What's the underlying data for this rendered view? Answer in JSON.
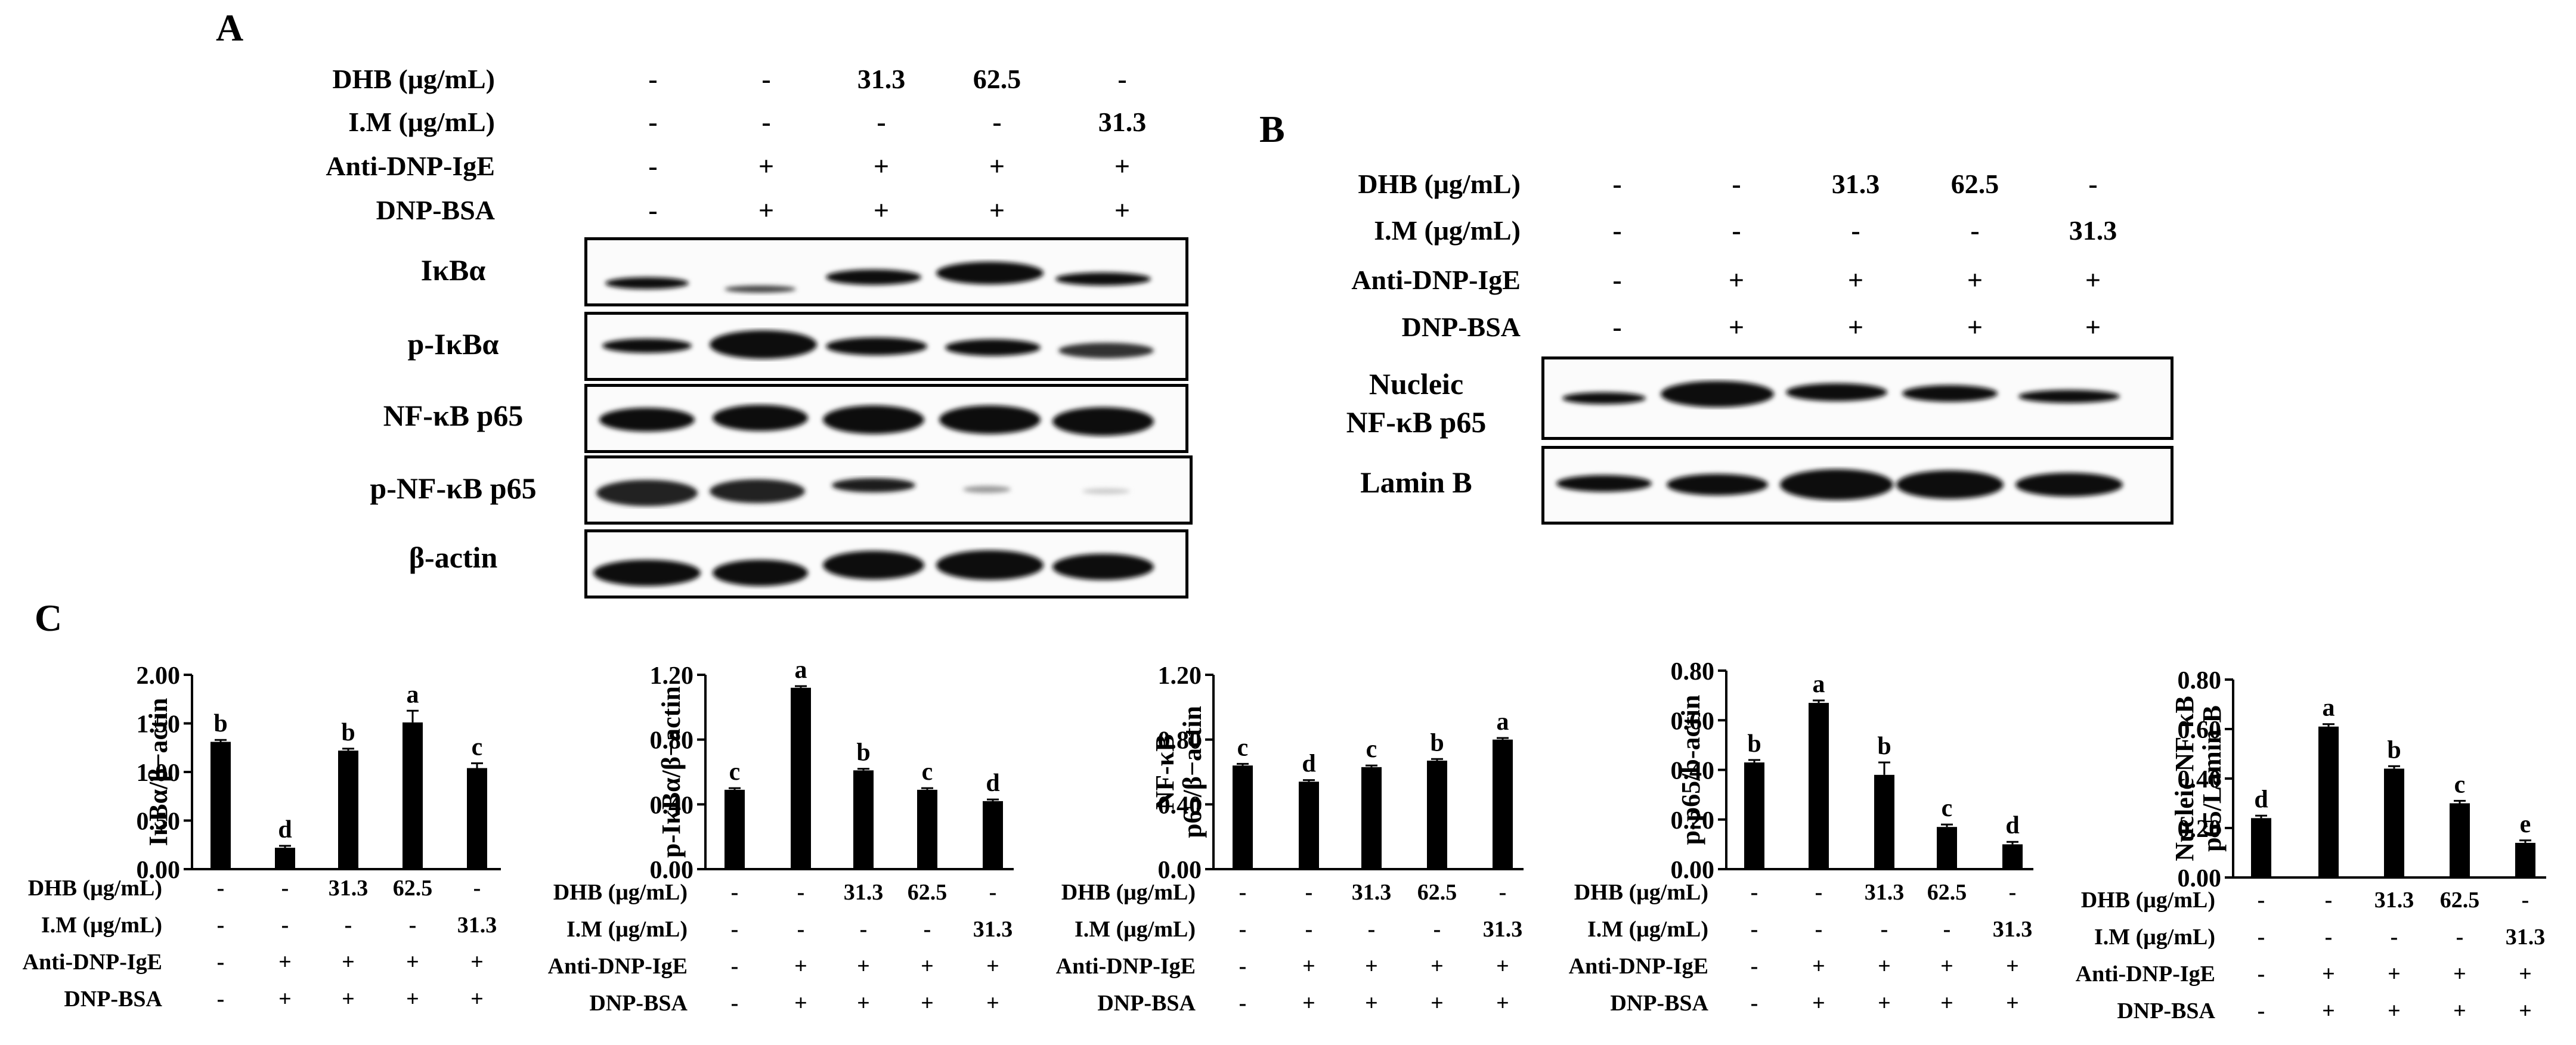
{
  "panels": {
    "a": "A",
    "b": "B",
    "c": "C"
  },
  "conditions": {
    "labels": [
      "DHB (μg/mL)",
      "I.M (μg/mL)",
      "Anti-DNP-IgE",
      "DNP-BSA"
    ],
    "rows": [
      [
        "-",
        "-",
        "31.3",
        "62.5",
        "-"
      ],
      [
        "-",
        "-",
        "-",
        "-",
        "31.3"
      ],
      [
        "-",
        "+",
        "+",
        "+",
        "+"
      ],
      [
        "-",
        "+",
        "+",
        "+",
        "+"
      ]
    ]
  },
  "blots_a": [
    "IκBα",
    "p-IκBα",
    "NF-κB p65",
    "p-NF-κB p65",
    "β-actin"
  ],
  "blots_b": [
    "Nucleic\nNF-κB p65",
    "Lamin B"
  ],
  "chart_data": [
    {
      "type": "bar",
      "ylabel": "IκBα/β−actin",
      "ylim": [
        0,
        2.0
      ],
      "yticks": [
        "0.00",
        "0.50",
        "1.00",
        "1.50",
        "2.00"
      ],
      "values": [
        1.31,
        0.22,
        1.22,
        1.51,
        1.04
      ],
      "errors": [
        0.02,
        0.02,
        0.02,
        0.12,
        0.05
      ],
      "letters": [
        "b",
        "d",
        "b",
        "a",
        "c"
      ]
    },
    {
      "type": "bar",
      "ylabel": "p-IκBα/β−actin",
      "ylim": [
        0,
        1.2
      ],
      "yticks": [
        "0.00",
        "0.40",
        "0.80",
        "1.20"
      ],
      "values": [
        0.49,
        1.12,
        0.61,
        0.49,
        0.42
      ],
      "errors": [
        0.01,
        0.01,
        0.01,
        0.01,
        0.01
      ],
      "letters": [
        "c",
        "a",
        "b",
        "c",
        "d"
      ]
    },
    {
      "type": "bar",
      "ylabel": "NF-κB\np65/β−actin",
      "ylim": [
        0,
        1.2
      ],
      "yticks": [
        "0.00",
        "0.40",
        "0.80",
        "1.20"
      ],
      "values": [
        0.64,
        0.54,
        0.63,
        0.67,
        0.8
      ],
      "errors": [
        0.01,
        0.01,
        0.01,
        0.01,
        0.01
      ],
      "letters": [
        "c",
        "d",
        "c",
        "b",
        "a"
      ]
    },
    {
      "type": "bar",
      "ylabel": "p-p65/b-actin",
      "ylim": [
        0,
        0.8
      ],
      "yticks": [
        "0.00",
        "0.20",
        "0.40",
        "0.60",
        "0.80"
      ],
      "values": [
        0.43,
        0.67,
        0.38,
        0.17,
        0.1
      ],
      "errors": [
        0.01,
        0.01,
        0.05,
        0.01,
        0.01
      ],
      "letters": [
        "b",
        "a",
        "b",
        "c",
        "d"
      ]
    },
    {
      "type": "bar",
      "ylabel": "Nucleic NF-κB\np65/Lamin B",
      "ylim": [
        0,
        0.8
      ],
      "yticks": [
        "0.00",
        "0.20",
        "0.40",
        "0.60",
        "0.80"
      ],
      "values": [
        0.24,
        0.61,
        0.44,
        0.3,
        0.14
      ],
      "errors": [
        0.01,
        0.01,
        0.01,
        0.01,
        0.01
      ],
      "letters": [
        "d",
        "a",
        "b",
        "c",
        "e"
      ]
    }
  ]
}
